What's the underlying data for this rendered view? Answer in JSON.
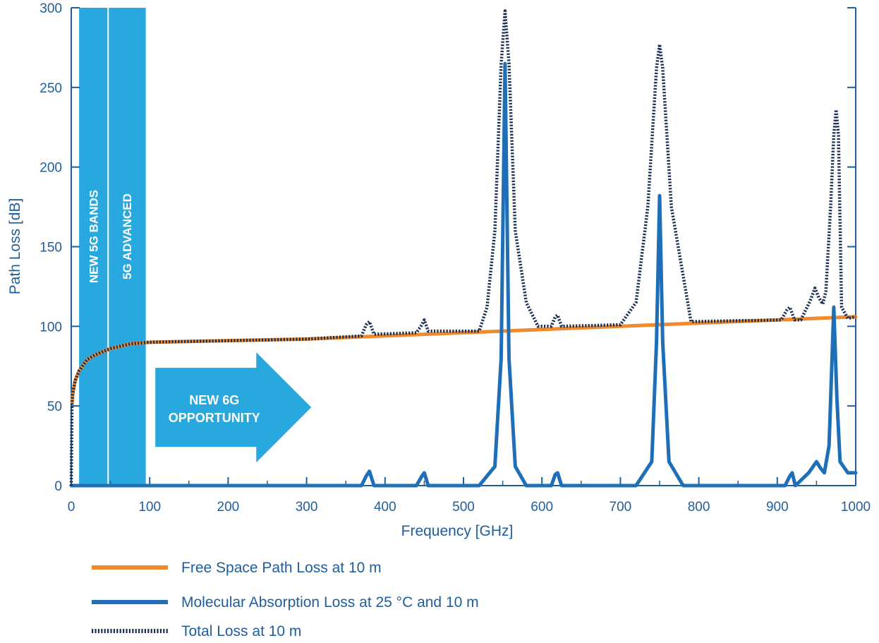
{
  "chart_data": {
    "type": "line",
    "title": "",
    "xlabel": "Frequency [GHz]",
    "ylabel": "Path Loss [dB]",
    "xlim": [
      0,
      1000
    ],
    "ylim": [
      0,
      300
    ],
    "x_ticks": [
      0,
      100,
      200,
      300,
      400,
      500,
      600,
      700,
      800,
      900,
      1000
    ],
    "y_ticks": [
      0,
      50,
      100,
      150,
      200,
      250,
      300
    ],
    "grid": false,
    "legend_position": "bottom-left",
    "series": [
      {
        "name": "Free Space Path Loss at 10 m",
        "color": "#f08a2c",
        "style": "solid",
        "x": [
          1,
          2,
          5,
          10,
          20,
          30,
          50,
          75,
          100,
          200,
          300,
          400,
          500,
          600,
          700,
          800,
          900,
          1000
        ],
        "y": [
          52,
          58,
          66,
          72,
          79,
          82,
          86,
          89,
          90,
          91,
          92,
          94,
          96,
          98,
          100,
          102,
          104,
          106
        ]
      },
      {
        "name": "Molecular Absorption Loss at 25 °C and 10 m",
        "color": "#1f6fb8",
        "style": "solid",
        "x": [
          0,
          370,
          376,
          380,
          386,
          440,
          447,
          450,
          455,
          520,
          540,
          548,
          553,
          558,
          566,
          580,
          612,
          617,
          620,
          625,
          720,
          740,
          746,
          750,
          754,
          762,
          780,
          910,
          916,
          919,
          923,
          940,
          950,
          955,
          960,
          966,
          972,
          976,
          980,
          990,
          1000
        ],
        "y": [
          0,
          0,
          6,
          9,
          0,
          0,
          6,
          8,
          0,
          0,
          12,
          80,
          265,
          80,
          12,
          0,
          0,
          7,
          8,
          0,
          0,
          15,
          90,
          182,
          90,
          15,
          0,
          0,
          6,
          8,
          0,
          8,
          15,
          11,
          8,
          25,
          112,
          55,
          15,
          8,
          8
        ]
      },
      {
        "name": "Total Loss at 10 m",
        "color": "#1b2f52",
        "style": "dotted",
        "x": [
          0,
          1,
          2,
          5,
          10,
          20,
          30,
          50,
          75,
          100,
          200,
          300,
          370,
          376,
          380,
          386,
          440,
          447,
          450,
          455,
          520,
          530,
          540,
          548,
          553,
          558,
          566,
          580,
          595,
          612,
          617,
          620,
          625,
          700,
          720,
          735,
          746,
          750,
          754,
          765,
          790,
          905,
          912,
          916,
          922,
          930,
          942,
          948,
          953,
          958,
          962,
          968,
          972,
          975,
          978,
          982,
          990,
          1000
        ],
        "y": [
          0,
          52,
          58,
          66,
          72,
          79,
          82,
          86,
          89,
          90,
          91,
          92,
          94,
          101,
          103,
          95,
          96,
          101,
          104,
          97,
          97,
          112,
          160,
          265,
          298,
          265,
          160,
          115,
          100,
          100,
          106,
          107,
          100,
          101,
          115,
          175,
          262,
          277,
          262,
          175,
          103,
          104,
          110,
          112,
          104,
          104,
          116,
          124,
          118,
          114,
          122,
          175,
          220,
          236,
          220,
          112,
          105,
          106
        ]
      }
    ],
    "bands": [
      {
        "label": "NEW 5G BANDS",
        "x_range": [
          10,
          47
        ]
      },
      {
        "label": "5G ADVANCED",
        "x_range": [
          47,
          95
        ]
      }
    ],
    "annotation": {
      "lines": [
        "NEW 6G",
        "OPPORTUNITY"
      ],
      "x_range": [
        100,
        297
      ],
      "y_center": 50
    }
  },
  "legend": [
    {
      "label": "Free Space Path Loss at 10 m",
      "color": "#f08a2c",
      "style": "solid"
    },
    {
      "label": "Molecular Absorption Loss at 25 °C and 10 m",
      "color": "#1f6fb8",
      "style": "solid"
    },
    {
      "label": "Total Loss at 10 m",
      "color": "#1b2f52",
      "style": "dotted"
    }
  ],
  "colors": {
    "axis": "#1f5e9c",
    "band_fill": "#29a8df",
    "band_divider": "#ffffff"
  }
}
